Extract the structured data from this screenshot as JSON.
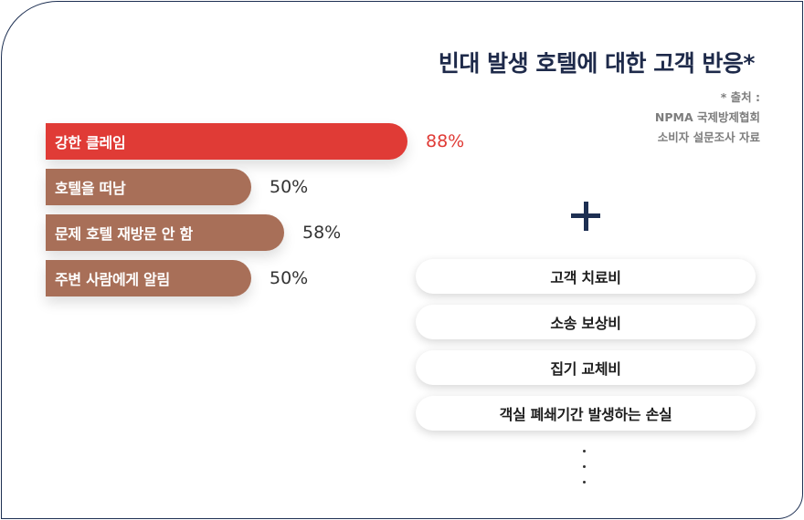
{
  "chart_data": {
    "type": "bar",
    "orientation": "horizontal",
    "title": "빈대 발생 호텔에 대한 고객 반응*",
    "categories": [
      "강한 클레임",
      "호텔을 떠남",
      "문제 호텔 재방문 안 함",
      "주변 사람에게 알림"
    ],
    "values": [
      88,
      50,
      58,
      50
    ],
    "value_labels": [
      "88%",
      "50%",
      "58%",
      "50%"
    ],
    "unit": "%",
    "xlim": [
      0,
      100
    ],
    "grid": false,
    "colors": {
      "highlight": "#e03b36",
      "bar": "#a86f58"
    }
  },
  "source": {
    "line1": "* 출처 :",
    "line2": "NPMA 국제방제협회",
    "line3": "소비자 설문조사 자료"
  },
  "plus_icon": "plus-icon",
  "cost_items": [
    "고객 치료비",
    "소송 보상비",
    "집기 교체비",
    "객실 폐쇄기간 발생하는 손실"
  ],
  "more_icon": "vertical-ellipsis-icon"
}
